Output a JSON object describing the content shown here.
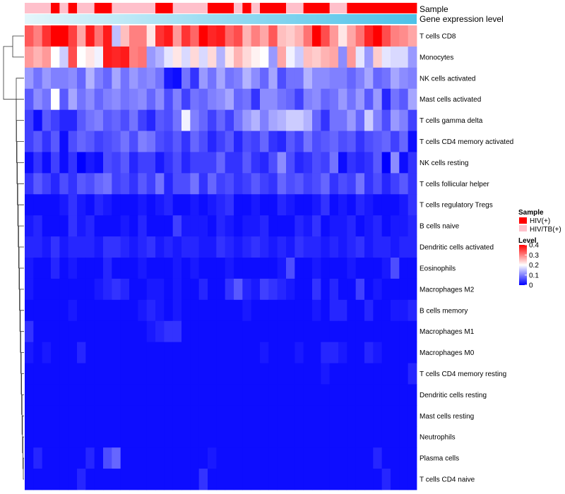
{
  "chart_data": {
    "type": "heatmap",
    "title": "",
    "annotation_tracks": [
      {
        "name": "Sample",
        "label": "Sample"
      },
      {
        "name": "Gene expression level",
        "label": "Gene expression level"
      }
    ],
    "sample_track": [
      1,
      1,
      1,
      0,
      1,
      0,
      1,
      1,
      0,
      0,
      1,
      1,
      1,
      1,
      1,
      0,
      0,
      1,
      1,
      1,
      1,
      0,
      0,
      0,
      1,
      0,
      1,
      0,
      0,
      0,
      1,
      1,
      0,
      0,
      0,
      1,
      1,
      0,
      0,
      0,
      0,
      0,
      0,
      0,
      0
    ],
    "rows": [
      "T cells CD8",
      "Monocytes",
      "NK cells activated",
      "Mast cells activated",
      "T cells gamma delta",
      "T cells CD4 memory activated",
      "NK cells resting",
      "T cells follicular helper",
      "T cells regulatory  Tregs",
      "B cells naive",
      "Dendritic cells activated",
      "Eosinophils",
      "Macrophages M2",
      "B cells memory",
      "Macrophages M1",
      "Macrophages M0",
      "T cells CD4 memory resting",
      "Dendritic cells resting",
      "Mast cells resting",
      "Neutrophils",
      "Plasma cells",
      "T cells CD4 naive"
    ],
    "n_columns": 45,
    "values": [
      [
        0.33,
        0.3,
        0.36,
        0.4,
        0.4,
        0.35,
        0.27,
        0.38,
        0.31,
        0.38,
        0.15,
        0.25,
        0.3,
        0.3,
        0.22,
        0.36,
        0.38,
        0.28,
        0.36,
        0.32,
        0.4,
        0.37,
        0.38,
        0.32,
        0.34,
        0.26,
        0.3,
        0.27,
        0.33,
        0.25,
        0.24,
        0.26,
        0.31,
        0.4,
        0.34,
        0.28,
        0.22,
        0.27,
        0.31,
        0.37,
        0.4,
        0.34,
        0.3,
        0.29,
        0.27
      ],
      [
        0.28,
        0.26,
        0.28,
        0.2,
        0.16,
        0.34,
        0.2,
        0.22,
        0.19,
        0.38,
        0.37,
        0.38,
        0.3,
        0.31,
        0.12,
        0.14,
        0.18,
        0.22,
        0.17,
        0.23,
        0.17,
        0.23,
        0.14,
        0.22,
        0.26,
        0.23,
        0.21,
        0.2,
        0.12,
        0.27,
        0.19,
        0.16,
        0.25,
        0.24,
        0.26,
        0.27,
        0.11,
        0.28,
        0.18,
        0.12,
        0.24,
        0.18,
        0.17,
        0.17,
        0.12
      ],
      [
        0.12,
        0.09,
        0.12,
        0.1,
        0.1,
        0.11,
        0.08,
        0.14,
        0.1,
        0.08,
        0.13,
        0.09,
        0.12,
        0.1,
        0.11,
        0.09,
        0.02,
        0.01,
        0.09,
        0.04,
        0.12,
        0.09,
        0.13,
        0.09,
        0.1,
        0.14,
        0.11,
        0.08,
        0.13,
        0.06,
        0.09,
        0.09,
        0.14,
        0.11,
        0.11,
        0.1,
        0.1,
        0.08,
        0.1,
        0.13,
        0.08,
        0.09,
        0.13,
        0.11,
        0.1
      ],
      [
        0.07,
        0.11,
        0.09,
        0.2,
        0.07,
        0.13,
        0.09,
        0.11,
        0.08,
        0.1,
        0.11,
        0.09,
        0.1,
        0.11,
        0.08,
        0.11,
        0.06,
        0.1,
        0.05,
        0.09,
        0.08,
        0.1,
        0.11,
        0.13,
        0.08,
        0.09,
        0.04,
        0.11,
        0.11,
        0.09,
        0.08,
        0.05,
        0.1,
        0.11,
        0.08,
        0.09,
        0.12,
        0.09,
        0.12,
        0.07,
        0.12,
        0.03,
        0.09,
        0.07,
        0.13
      ],
      [
        0.05,
        0.01,
        0.07,
        0.05,
        0.03,
        0.03,
        0.07,
        0.09,
        0.1,
        0.07,
        0.08,
        0.06,
        0.09,
        0.05,
        0.03,
        0.07,
        0.06,
        0.09,
        0.19,
        0.1,
        0.08,
        0.05,
        0.08,
        0.05,
        0.09,
        0.12,
        0.14,
        0.1,
        0.13,
        0.14,
        0.16,
        0.16,
        0.14,
        0.08,
        0.04,
        0.09,
        0.09,
        0.12,
        0.08,
        0.16,
        0.1,
        0.06,
        0.12,
        0.1,
        0.05
      ],
      [
        0.05,
        0.07,
        0.04,
        0.07,
        0.01,
        0.06,
        0.08,
        0.07,
        0.05,
        0.06,
        0.07,
        0.09,
        0.06,
        0.1,
        0.09,
        0.06,
        0.05,
        0.07,
        0.04,
        0.08,
        0.06,
        0.03,
        0.05,
        0.07,
        0.03,
        0.06,
        0.05,
        0.08,
        0.04,
        0.03,
        0.07,
        0.05,
        0.09,
        0.06,
        0.07,
        0.08,
        0.06,
        0.07,
        0.04,
        0.06,
        0.07,
        0.08,
        0.05,
        0.08,
        0.01
      ],
      [
        0.01,
        0.04,
        0.01,
        0.05,
        0.01,
        0.04,
        0.0,
        0.02,
        0.01,
        0.06,
        0.05,
        0.07,
        0.03,
        0.05,
        0.05,
        0.02,
        0.04,
        0.06,
        0.03,
        0.05,
        0.05,
        0.05,
        0.08,
        0.04,
        0.04,
        0.07,
        0.04,
        0.03,
        0.06,
        0.11,
        0.06,
        0.03,
        0.04,
        0.06,
        0.05,
        0.09,
        0.01,
        0.04,
        0.03,
        0.04,
        0.07,
        0.0,
        0.11,
        0.01,
        0.04
      ],
      [
        0.04,
        0.07,
        0.05,
        0.03,
        0.06,
        0.04,
        0.07,
        0.06,
        0.08,
        0.09,
        0.05,
        0.06,
        0.04,
        0.07,
        0.05,
        0.09,
        0.03,
        0.06,
        0.06,
        0.09,
        0.04,
        0.08,
        0.05,
        0.06,
        0.04,
        0.05,
        0.07,
        0.05,
        0.04,
        0.08,
        0.06,
        0.07,
        0.05,
        0.06,
        0.08,
        0.04,
        0.06,
        0.05,
        0.09,
        0.04,
        0.06,
        0.03,
        0.05,
        0.07,
        0.04
      ],
      [
        0.01,
        0.01,
        0.01,
        0.01,
        0.02,
        0.04,
        0.02,
        0.01,
        0.03,
        0.02,
        0.01,
        0.01,
        0.01,
        0.02,
        0.01,
        0.02,
        0.03,
        0.01,
        0.01,
        0.02,
        0.01,
        0.02,
        0.03,
        0.04,
        0.01,
        0.01,
        0.02,
        0.01,
        0.01,
        0.03,
        0.02,
        0.01,
        0.01,
        0.02,
        0.04,
        0.01,
        0.02,
        0.01,
        0.03,
        0.02,
        0.01,
        0.01,
        0.01,
        0.02,
        0.04
      ],
      [
        0.02,
        0.03,
        0.01,
        0.01,
        0.01,
        0.04,
        0.02,
        0.03,
        0.01,
        0.01,
        0.01,
        0.02,
        0.01,
        0.03,
        0.01,
        0.01,
        0.01,
        0.05,
        0.02,
        0.02,
        0.02,
        0.01,
        0.03,
        0.02,
        0.01,
        0.02,
        0.02,
        0.03,
        0.01,
        0.01,
        0.01,
        0.03,
        0.02,
        0.04,
        0.01,
        0.02,
        0.02,
        0.03,
        0.01,
        0.02,
        0.03,
        0.01,
        0.02,
        0.02,
        0.03
      ],
      [
        0.03,
        0.03,
        0.02,
        0.04,
        0.02,
        0.03,
        0.03,
        0.03,
        0.02,
        0.04,
        0.04,
        0.03,
        0.02,
        0.03,
        0.04,
        0.02,
        0.03,
        0.02,
        0.03,
        0.03,
        0.02,
        0.02,
        0.04,
        0.03,
        0.02,
        0.03,
        0.04,
        0.03,
        0.02,
        0.03,
        0.02,
        0.04,
        0.03,
        0.03,
        0.02,
        0.03,
        0.02,
        0.03,
        0.04,
        0.02,
        0.03,
        0.03,
        0.02,
        0.03,
        0.03
      ],
      [
        0.02,
        0.01,
        0.01,
        0.03,
        0.01,
        0.02,
        0.01,
        0.01,
        0.01,
        0.03,
        0.01,
        0.01,
        0.01,
        0.02,
        0.01,
        0.01,
        0.01,
        0.02,
        0.01,
        0.02,
        0.01,
        0.01,
        0.01,
        0.02,
        0.01,
        0.01,
        0.01,
        0.01,
        0.01,
        0.02,
        0.06,
        0.01,
        0.01,
        0.02,
        0.01,
        0.01,
        0.01,
        0.02,
        0.01,
        0.01,
        0.01,
        0.02,
        0.06,
        0.01,
        0.01
      ],
      [
        0.02,
        0.01,
        0.01,
        0.01,
        0.01,
        0.01,
        0.01,
        0.01,
        0.02,
        0.03,
        0.04,
        0.03,
        0.01,
        0.01,
        0.02,
        0.02,
        0.01,
        0.02,
        0.01,
        0.01,
        0.03,
        0.01,
        0.01,
        0.04,
        0.07,
        0.03,
        0.02,
        0.05,
        0.04,
        0.03,
        0.02,
        0.01,
        0.01,
        0.04,
        0.01,
        0.03,
        0.01,
        0.01,
        0.05,
        0.01,
        0.02,
        0.01,
        0.01,
        0.01,
        0.01
      ],
      [
        0.01,
        0.01,
        0.01,
        0.01,
        0.01,
        0.02,
        0.01,
        0.01,
        0.01,
        0.01,
        0.01,
        0.01,
        0.01,
        0.02,
        0.03,
        0.02,
        0.01,
        0.02,
        0.01,
        0.01,
        0.01,
        0.01,
        0.01,
        0.01,
        0.01,
        0.02,
        0.01,
        0.01,
        0.01,
        0.01,
        0.01,
        0.01,
        0.01,
        0.02,
        0.01,
        0.03,
        0.03,
        0.01,
        0.01,
        0.03,
        0.01,
        0.01,
        0.02,
        0.02,
        0.03
      ],
      [
        0.04,
        0.01,
        0.01,
        0.01,
        0.01,
        0.01,
        0.01,
        0.01,
        0.01,
        0.01,
        0.01,
        0.01,
        0.01,
        0.01,
        0.02,
        0.03,
        0.04,
        0.04,
        0.01,
        0.01,
        0.01,
        0.01,
        0.01,
        0.01,
        0.01,
        0.01,
        0.01,
        0.01,
        0.01,
        0.01,
        0.01,
        0.01,
        0.01,
        0.01,
        0.01,
        0.01,
        0.01,
        0.01,
        0.01,
        0.01,
        0.01,
        0.01,
        0.01,
        0.01,
        0.01
      ],
      [
        0.02,
        0.01,
        0.02,
        0.01,
        0.01,
        0.01,
        0.03,
        0.01,
        0.01,
        0.01,
        0.01,
        0.01,
        0.01,
        0.01,
        0.01,
        0.01,
        0.01,
        0.01,
        0.01,
        0.01,
        0.01,
        0.01,
        0.01,
        0.01,
        0.01,
        0.01,
        0.01,
        0.02,
        0.01,
        0.01,
        0.01,
        0.02,
        0.01,
        0.01,
        0.03,
        0.03,
        0.02,
        0.01,
        0.01,
        0.03,
        0.02,
        0.01,
        0.01,
        0.01,
        0.01
      ],
      [
        0.01,
        0.01,
        0.01,
        0.01,
        0.01,
        0.01,
        0.01,
        0.01,
        0.01,
        0.01,
        0.01,
        0.01,
        0.01,
        0.01,
        0.01,
        0.01,
        0.01,
        0.01,
        0.01,
        0.01,
        0.01,
        0.01,
        0.01,
        0.01,
        0.01,
        0.01,
        0.01,
        0.01,
        0.01,
        0.01,
        0.01,
        0.01,
        0.01,
        0.01,
        0.02,
        0.01,
        0.01,
        0.01,
        0.01,
        0.01,
        0.01,
        0.01,
        0.01,
        0.01,
        0.03
      ],
      [
        0.01,
        0.01,
        0.01,
        0.01,
        0.01,
        0.01,
        0.01,
        0.01,
        0.01,
        0.01,
        0.01,
        0.01,
        0.01,
        0.01,
        0.01,
        0.01,
        0.01,
        0.01,
        0.01,
        0.01,
        0.01,
        0.01,
        0.01,
        0.01,
        0.01,
        0.01,
        0.01,
        0.01,
        0.01,
        0.01,
        0.01,
        0.01,
        0.01,
        0.01,
        0.01,
        0.01,
        0.01,
        0.01,
        0.01,
        0.01,
        0.01,
        0.01,
        0.01,
        0.01,
        0.01
      ],
      [
        0.01,
        0.01,
        0.01,
        0.01,
        0.01,
        0.01,
        0.01,
        0.01,
        0.01,
        0.01,
        0.01,
        0.01,
        0.01,
        0.01,
        0.01,
        0.01,
        0.01,
        0.01,
        0.01,
        0.01,
        0.01,
        0.01,
        0.01,
        0.01,
        0.01,
        0.01,
        0.01,
        0.01,
        0.01,
        0.01,
        0.01,
        0.01,
        0.01,
        0.01,
        0.01,
        0.01,
        0.01,
        0.01,
        0.01,
        0.01,
        0.01,
        0.01,
        0.01,
        0.01,
        0.01
      ],
      [
        0.01,
        0.01,
        0.01,
        0.01,
        0.01,
        0.01,
        0.01,
        0.01,
        0.01,
        0.01,
        0.01,
        0.01,
        0.01,
        0.01,
        0.01,
        0.01,
        0.01,
        0.01,
        0.01,
        0.01,
        0.01,
        0.01,
        0.01,
        0.01,
        0.01,
        0.01,
        0.01,
        0.01,
        0.01,
        0.01,
        0.01,
        0.01,
        0.01,
        0.01,
        0.01,
        0.01,
        0.01,
        0.01,
        0.01,
        0.01,
        0.01,
        0.01,
        0.01,
        0.01,
        0.01
      ],
      [
        0.01,
        0.03,
        0.01,
        0.01,
        0.01,
        0.01,
        0.01,
        0.03,
        0.01,
        0.06,
        0.08,
        0.01,
        0.01,
        0.01,
        0.01,
        0.01,
        0.01,
        0.01,
        0.01,
        0.01,
        0.01,
        0.02,
        0.01,
        0.01,
        0.01,
        0.01,
        0.01,
        0.01,
        0.01,
        0.01,
        0.01,
        0.01,
        0.01,
        0.01,
        0.01,
        0.01,
        0.01,
        0.01,
        0.01,
        0.01,
        0.03,
        0.01,
        0.01,
        0.01,
        0.01
      ],
      [
        0.01,
        0.01,
        0.01,
        0.01,
        0.01,
        0.01,
        0.03,
        0.01,
        0.01,
        0.01,
        0.01,
        0.01,
        0.01,
        0.01,
        0.01,
        0.01,
        0.01,
        0.01,
        0.01,
        0.01,
        0.04,
        0.01,
        0.01,
        0.01,
        0.01,
        0.01,
        0.01,
        0.01,
        0.01,
        0.01,
        0.01,
        0.01,
        0.01,
        0.01,
        0.01,
        0.01,
        0.01,
        0.01,
        0.01,
        0.01,
        0.01,
        0.03,
        0.01,
        0.01,
        0.01
      ]
    ],
    "legend": {
      "sample_title": "Sample",
      "sample_entries": [
        {
          "label": "HIV(+)",
          "color": "#ff0000"
        },
        {
          "label": "HIV/TB(+)",
          "color": "#ffc0cb"
        }
      ],
      "level_title": "Level",
      "level_ticks": [
        "0.4",
        "0.3",
        "0.2",
        "0.1",
        "0"
      ],
      "range": [
        0,
        0.4
      ]
    },
    "colors": {
      "low": "#0000ff",
      "mid": "#ffffff",
      "high": "#ff0000",
      "gene_track_left": "#e4f6fb",
      "gene_track_right": "#4cc1e8",
      "dendrogram": "#333333"
    }
  }
}
